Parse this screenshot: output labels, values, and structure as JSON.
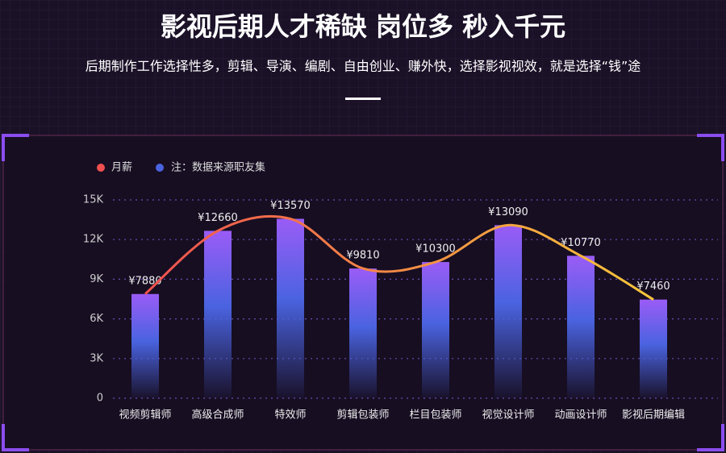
{
  "chart_data": {
    "type": "bar",
    "title": "影视后期人才稀缺 岗位多 秒入千元",
    "subtitle": "后期制作工作选择性多，剪辑、导演、编剧、自由创业、赚外快，选择影视视效，就是选择“钱”途",
    "note": "注：数据来源职友集",
    "note_color": "#4a63e0",
    "categories": [
      "视频剪辑师",
      "高级合成师",
      "特效师",
      "剪辑包装师",
      "栏目包装师",
      "视觉设计师",
      "动画设计师",
      "影视后期编辑"
    ],
    "series": [
      {
        "name": "月薪",
        "color": "#f0504f",
        "values": [
          7880,
          12660,
          13570,
          9810,
          10300,
          13090,
          10770,
          7460
        ],
        "value_labels": [
          "¥7880",
          "¥12660",
          "¥13570",
          "¥9810",
          "¥10300",
          "¥13090",
          "¥10770",
          "¥7460"
        ]
      }
    ],
    "ylim": [
      0,
      15000
    ],
    "yticks": [
      0,
      {
        "value": 3000,
        "label": "3K"
      },
      {
        "value": 6000,
        "label": "6K"
      },
      {
        "value": 9000,
        "label": "9K"
      },
      {
        "value": 12000,
        "label": "12K"
      },
      {
        "value": 15000,
        "label": "15K"
      }
    ],
    "grid": true
  }
}
